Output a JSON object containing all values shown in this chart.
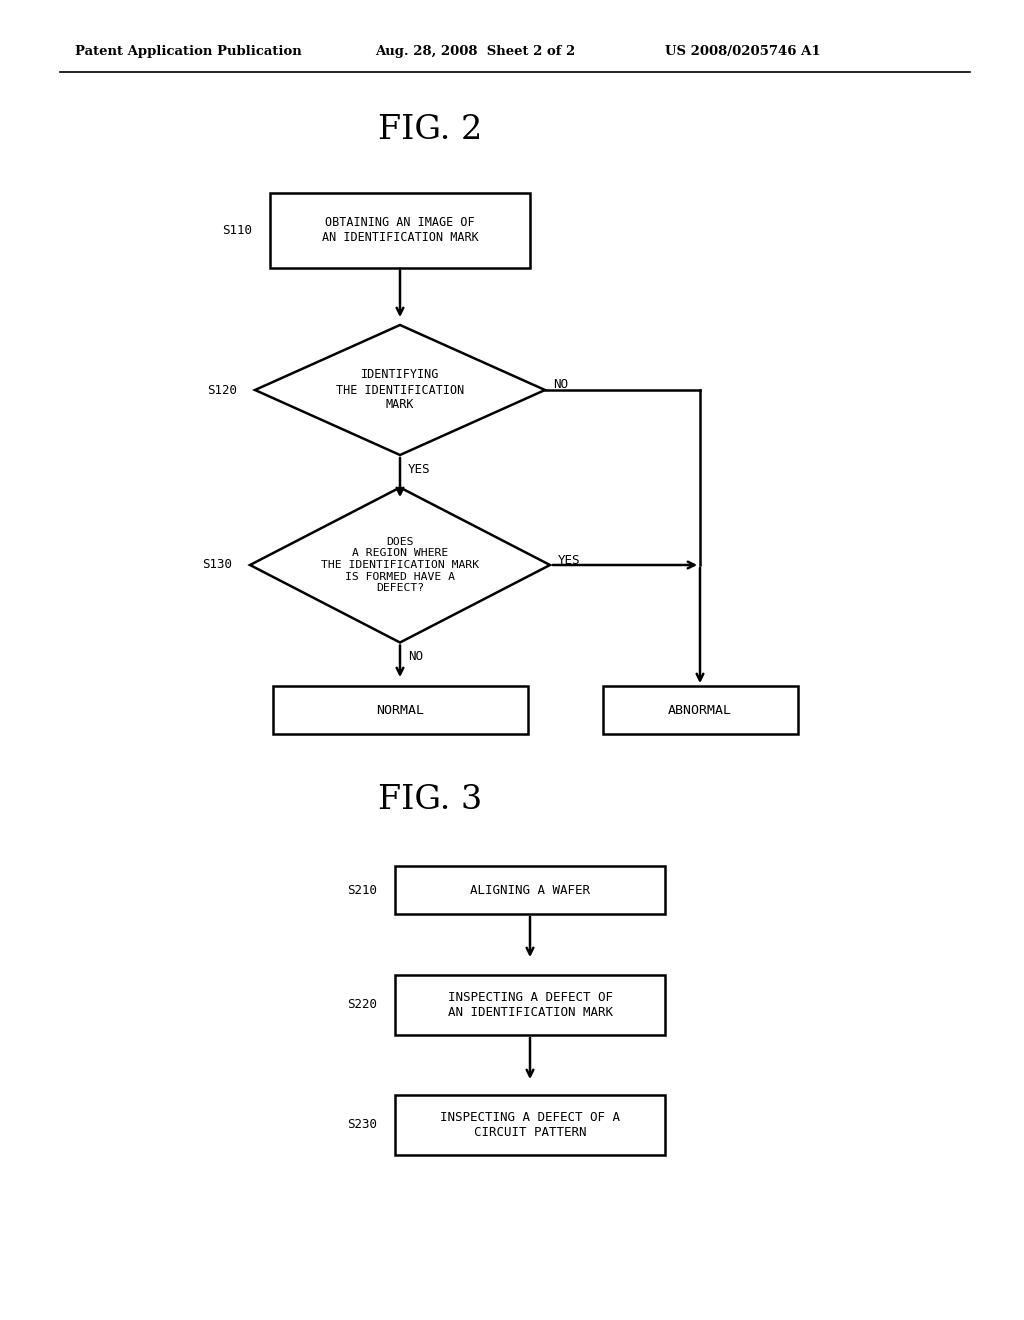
{
  "background_color": "#ffffff",
  "fig2_title": "FIG. 2",
  "fig3_title": "FIG. 3",
  "fig2": {
    "s110_label": "S110",
    "s120_label": "S120",
    "s130_label": "S130",
    "box1_text": "OBTAINING AN IMAGE OF\nAN IDENTIFICATION MARK",
    "diamond1_text": "IDENTIFYING\nTHE IDENTIFICATION\nMARK",
    "diamond2_text": "DOES\nA REGION WHERE\nTHE IDENTIFICATION MARK\nIS FORMED HAVE A\nDEFECT?",
    "normal_text": "NORMAL",
    "abnormal_text": "ABNORMAL",
    "yes1_label": "YES",
    "no1_label": "NO",
    "yes2_label": "YES",
    "no2_label": "NO"
  },
  "fig3": {
    "s210_label": "S210",
    "s220_label": "S220",
    "s230_label": "S230",
    "box1_text": "ALIGNING A WAFER",
    "box2_text": "INSPECTING A DEFECT OF\nAN IDENTIFICATION MARK",
    "box3_text": "INSPECTING A DEFECT OF A\nCIRCUIT PATTERN"
  }
}
